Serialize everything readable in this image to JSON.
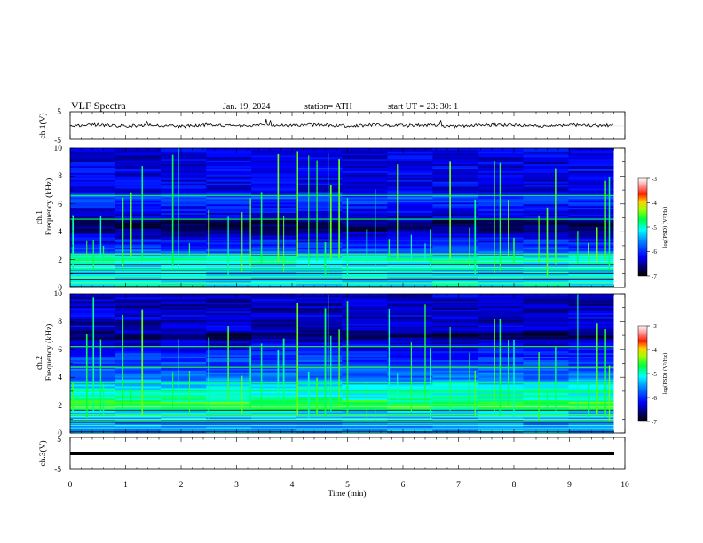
{
  "header": {
    "title": "VLF  Spectra",
    "date": "Jan.  19,  2024",
    "station": "station= ATH",
    "start_ut": "start  UT  =    23: 30: 1"
  },
  "panels": {
    "ch1_wave": {
      "ylabel": "ch.1(V)",
      "yticks": [
        "5",
        "-5"
      ]
    },
    "ch1_spec": {
      "ylabel_top": "ch.1",
      "ylabel": "Frequency  (kHz)",
      "yticks": [
        "0",
        "2",
        "4",
        "6",
        "8",
        "10"
      ]
    },
    "ch2_spec": {
      "ylabel_top": "ch.2",
      "ylabel": "Frequency  (kHz)",
      "yticks": [
        "0",
        "2",
        "4",
        "6",
        "8",
        "10"
      ]
    },
    "ch3_wave": {
      "ylabel": "ch.3(V)",
      "yticks": [
        "5",
        "-5"
      ]
    },
    "xaxis": {
      "label": "Time  (min)",
      "ticks": [
        "0",
        "1",
        "2",
        "3",
        "4",
        "5",
        "6",
        "7",
        "8",
        "9",
        "10"
      ]
    }
  },
  "colorbars": [
    {
      "label": "log(PSD) (V²/Hz)",
      "ticks": [
        "-3",
        "-4",
        "-5",
        "-6",
        "-7"
      ]
    },
    {
      "label": "log(PSD) (V²/Hz)",
      "ticks": [
        "-3",
        "-4",
        "-5",
        "-6",
        "-7"
      ]
    }
  ],
  "chart_data": [
    {
      "type": "line",
      "name": "ch.1 waveform",
      "xlabel": "Time (min)",
      "ylabel": "ch.1(V)",
      "xlim": [
        0,
        10
      ],
      "ylim": [
        -5,
        5
      ],
      "x": [
        0,
        0.5,
        1,
        1.5,
        2,
        2.5,
        3,
        3.5,
        4,
        4.5,
        5,
        5.5,
        6,
        6.5,
        7,
        7.5,
        8,
        8.5,
        9,
        9.5,
        9.8
      ],
      "y": [
        0,
        0.3,
        -0.2,
        0.2,
        -0.3,
        0.3,
        -0.2,
        0.2,
        0,
        0.3,
        -0.2,
        0.2,
        0,
        0.2,
        -0.3,
        0.2,
        0.3,
        -0.2,
        0.2,
        0,
        0.1
      ]
    },
    {
      "type": "heatmap",
      "name": "ch.1 spectrogram",
      "xlabel": "Time (min)",
      "ylabel": "Frequency (kHz)",
      "xlim": [
        0,
        10
      ],
      "ylim": [
        0,
        10
      ],
      "data_xmax": 9.8,
      "clim": [
        -7,
        -3
      ],
      "colorbar_label": "log(PSD) (V²/Hz)",
      "background_by_freq_khz": [
        [
          0,
          -5.0
        ],
        [
          0.5,
          -5.3
        ],
        [
          1.0,
          -5.2
        ],
        [
          1.5,
          -5.3
        ],
        [
          2.0,
          -4.9
        ],
        [
          2.5,
          -5.7
        ],
        [
          3.0,
          -6.0
        ],
        [
          3.5,
          -6.2
        ],
        [
          4.0,
          -6.5
        ],
        [
          4.5,
          -6.8
        ],
        [
          5.0,
          -6.4
        ],
        [
          5.5,
          -6.2
        ],
        [
          6.0,
          -6.1
        ],
        [
          6.5,
          -5.8
        ],
        [
          7.0,
          -6.3
        ],
        [
          7.5,
          -6.2
        ],
        [
          8.0,
          -6.3
        ],
        [
          8.5,
          -6.2
        ],
        [
          9.0,
          -6.3
        ],
        [
          9.5,
          -6.3
        ],
        [
          10.0,
          -6.2
        ]
      ],
      "lines_khz": [
        0.3,
        0.8,
        1.3,
        2.1,
        2.4,
        3.4,
        4.9,
        6.6
      ],
      "impulse_times_min": [
        0.05,
        0.3,
        0.42,
        0.55,
        0.6,
        0.95,
        1.1,
        1.3,
        1.85,
        1.95,
        2.15,
        2.5,
        2.85,
        3.1,
        3.25,
        3.45,
        3.75,
        3.85,
        4.1,
        4.3,
        4.45,
        4.6,
        4.65,
        4.7,
        4.85,
        5.0,
        5.35,
        5.5,
        5.75,
        5.9,
        6.15,
        6.4,
        6.5,
        6.85,
        7.2,
        7.3,
        7.65,
        7.75,
        7.9,
        8.0,
        8.45,
        8.6,
        8.75,
        9.15,
        9.35,
        9.5,
        9.65,
        9.72
      ]
    },
    {
      "type": "heatmap",
      "name": "ch.2 spectrogram",
      "xlabel": "Time (min)",
      "ylabel": "Frequency (kHz)",
      "xlim": [
        0,
        10
      ],
      "ylim": [
        0,
        10
      ],
      "data_xmax": 9.8,
      "clim": [
        -7,
        -3
      ],
      "colorbar_label": "log(PSD) (V²/Hz)",
      "background_by_freq_khz": [
        [
          0,
          -5.4
        ],
        [
          0.5,
          -5.6
        ],
        [
          1.0,
          -5.4
        ],
        [
          1.5,
          -5.3
        ],
        [
          2.0,
          -4.3
        ],
        [
          2.5,
          -5.0
        ],
        [
          3.0,
          -5.1
        ],
        [
          3.5,
          -5.3
        ],
        [
          4.0,
          -5.7
        ],
        [
          4.5,
          -5.8
        ],
        [
          5.0,
          -5.9
        ],
        [
          5.5,
          -6.0
        ],
        [
          6.0,
          -6.2
        ],
        [
          6.5,
          -6.3
        ],
        [
          7.0,
          -6.8
        ],
        [
          7.5,
          -6.3
        ],
        [
          8.0,
          -6.4
        ],
        [
          8.5,
          -6.3
        ],
        [
          9.0,
          -6.4
        ],
        [
          9.5,
          -6.4
        ],
        [
          10.0,
          -6.3
        ]
      ],
      "lines_khz": [
        0.3,
        0.8,
        1.3,
        1.95,
        2.1,
        2.6,
        3.0,
        3.6,
        4.7,
        6.2
      ],
      "impulse_times_min": [
        0.05,
        0.3,
        0.42,
        0.55,
        0.6,
        0.95,
        1.1,
        1.3,
        1.85,
        1.95,
        2.15,
        2.5,
        2.85,
        3.1,
        3.25,
        3.45,
        3.75,
        3.85,
        4.1,
        4.3,
        4.45,
        4.6,
        4.65,
        4.7,
        4.85,
        5.0,
        5.35,
        5.5,
        5.75,
        5.9,
        6.15,
        6.4,
        6.5,
        6.85,
        7.2,
        7.3,
        7.65,
        7.75,
        7.9,
        8.0,
        8.45,
        8.6,
        8.75,
        9.15,
        9.35,
        9.5,
        9.65,
        9.72
      ]
    },
    {
      "type": "line",
      "name": "ch.3 waveform",
      "xlabel": "Time (min)",
      "ylabel": "ch.3(V)",
      "xlim": [
        0,
        10
      ],
      "ylim": [
        -5,
        5
      ],
      "x": [
        0,
        9.8
      ],
      "y": [
        0,
        0
      ]
    }
  ]
}
